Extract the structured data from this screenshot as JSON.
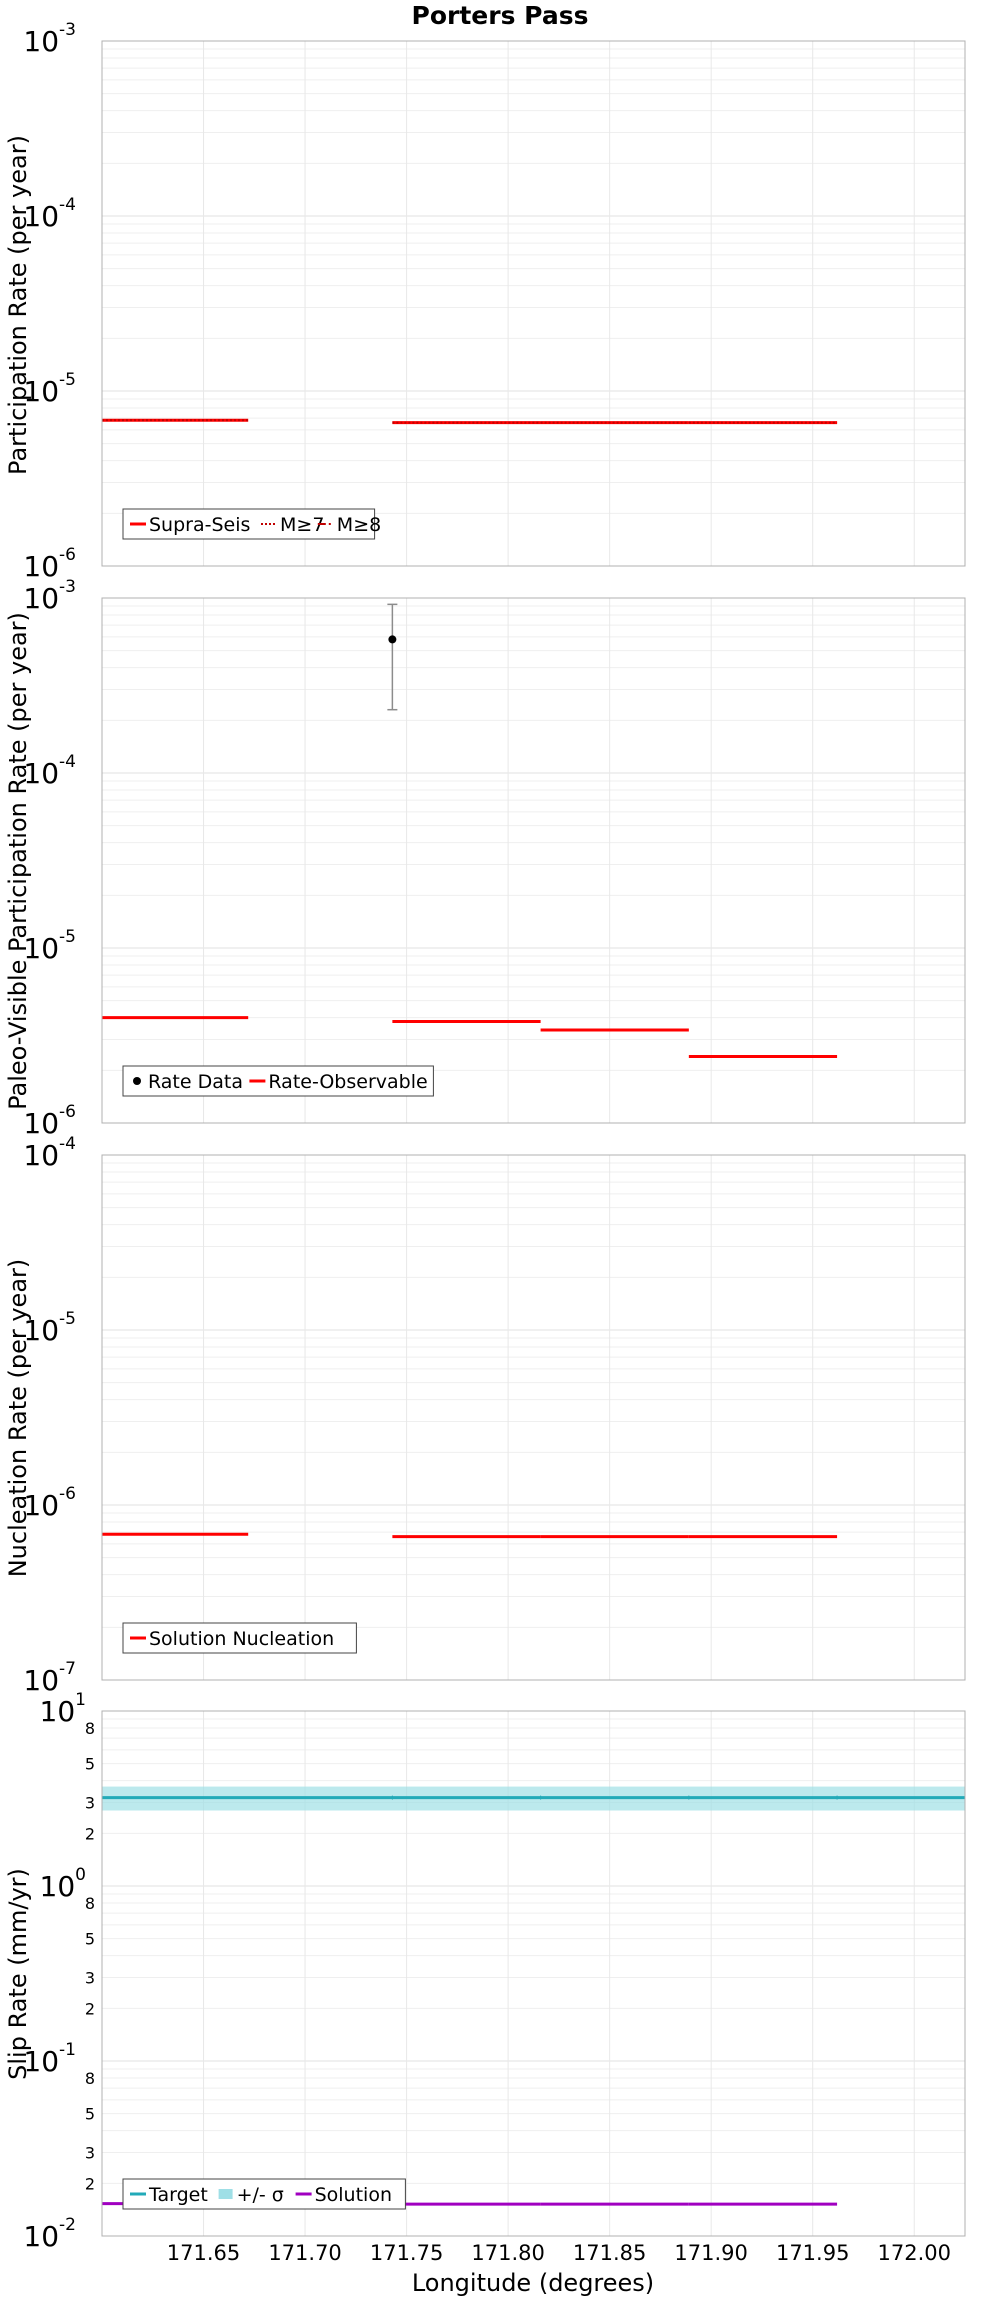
{
  "chart_data": [
    {
      "type": "line",
      "title": "Porters Pass",
      "ylabel": "Participation Rate (per year)",
      "xlabel": "",
      "yscale": "log",
      "ylim": [
        1e-06,
        0.001
      ],
      "xlim": [
        171.6,
        172.025
      ],
      "series": [
        {
          "name": "Supra-Seis",
          "color": "#ff0000",
          "style": "solid",
          "segments": [
            [
              171.6,
              171.672,
              6.8e-06
            ],
            [
              171.743,
              171.816,
              6.6e-06
            ],
            [
              171.816,
              171.889,
              6.6e-06
            ],
            [
              171.889,
              171.962,
              6.6e-06
            ]
          ]
        },
        {
          "name": "M≥7",
          "color": "#ff0000",
          "style": "dotted",
          "segments": [
            [
              171.6,
              171.672,
              6.8e-06
            ],
            [
              171.743,
              171.816,
              6.6e-06
            ],
            [
              171.816,
              171.889,
              6.6e-06
            ],
            [
              171.889,
              171.962,
              6.6e-06
            ]
          ]
        },
        {
          "name": "M≥8",
          "color": "#ff0000",
          "style": "dashdot",
          "segments": []
        }
      ],
      "legend": [
        "Supra-Seis",
        "M≥7",
        "M≥8"
      ],
      "legend_loc": "bottom-left"
    },
    {
      "type": "line",
      "title": "",
      "ylabel": "Paleo-Visible Participation Rate (per year)",
      "xlabel": "",
      "yscale": "log",
      "ylim": [
        1e-06,
        0.001
      ],
      "xlim": [
        171.6,
        172.025
      ],
      "points": [
        {
          "name": "Rate Data",
          "x": 171.743,
          "y": 0.00058,
          "ylow": 0.00023,
          "yhigh": 0.00092
        }
      ],
      "series": [
        {
          "name": "Rate-Observable",
          "color": "#ff0000",
          "style": "solid",
          "segments": [
            [
              171.6,
              171.672,
              4e-06
            ],
            [
              171.743,
              171.816,
              3.8e-06
            ],
            [
              171.816,
              171.889,
              3.4e-06
            ],
            [
              171.889,
              171.962,
              2.4e-06
            ]
          ]
        }
      ],
      "legend": [
        "Rate Data",
        "Rate-Observable"
      ],
      "legend_loc": "bottom-left"
    },
    {
      "type": "line",
      "title": "",
      "ylabel": "Nucleation Rate (per year)",
      "xlabel": "",
      "yscale": "log",
      "ylim": [
        1e-07,
        0.0001
      ],
      "xlim": [
        171.6,
        172.025
      ],
      "series": [
        {
          "name": "Solution Nucleation",
          "color": "#ff0000",
          "style": "solid",
          "segments": [
            [
              171.6,
              171.672,
              6.8e-07
            ],
            [
              171.743,
              171.816,
              6.6e-07
            ],
            [
              171.816,
              171.889,
              6.6e-07
            ],
            [
              171.889,
              171.962,
              6.6e-07
            ]
          ]
        }
      ],
      "legend": [
        "Solution Nucleation"
      ],
      "legend_loc": "bottom-left"
    },
    {
      "type": "line",
      "title": "",
      "ylabel": "Slip Rate (mm/yr)",
      "xlabel": "Longitude (degrees)",
      "yscale": "log",
      "ylim": [
        0.01,
        10
      ],
      "xlim": [
        171.6,
        172.025
      ],
      "xticks": [
        171.65,
        171.7,
        171.75,
        171.8,
        171.85,
        171.9,
        171.95,
        172.0
      ],
      "xtick_labels": [
        "171.65",
        "171.70",
        "171.75",
        "171.80",
        "171.85",
        "171.90",
        "171.95",
        "172.00"
      ],
      "band": {
        "name": "+/- σ",
        "color": "#9fdfe6",
        "low": 2.7,
        "high": 3.7,
        "x0": 171.6,
        "x1": 172.025
      },
      "series": [
        {
          "name": "Target",
          "color": "#22aab8",
          "style": "solid",
          "segments": [
            [
              171.6,
              172.025,
              3.2
            ]
          ]
        },
        {
          "name": "Solution",
          "color": "#a000c0",
          "style": "solid",
          "segments": [
            [
              171.6,
              171.672,
              0.0153
            ],
            [
              171.743,
              171.816,
              0.0152
            ],
            [
              171.816,
              171.889,
              0.0152
            ],
            [
              171.889,
              171.962,
              0.0152
            ]
          ]
        }
      ],
      "minor_tick_labels": [
        "8",
        "5",
        "3",
        "2"
      ],
      "legend": [
        "Target",
        "+/- σ",
        "Solution"
      ],
      "legend_loc": "bottom-left"
    }
  ]
}
